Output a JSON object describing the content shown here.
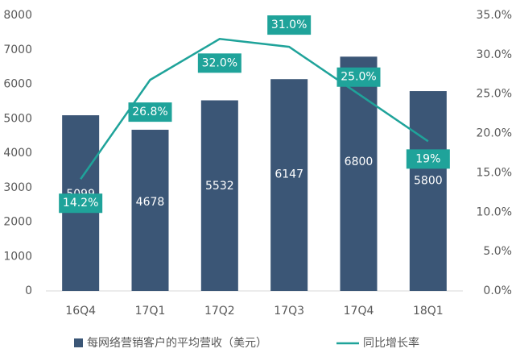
{
  "chart_data": {
    "type": "bar_line",
    "categories": [
      "16Q4",
      "17Q1",
      "17Q2",
      "17Q3",
      "17Q4",
      "18Q1"
    ],
    "series": [
      {
        "name": "每网络营销客户的平均营收（美元）",
        "type": "bar",
        "color": "#3b5676",
        "values": [
          5099,
          4678,
          5532,
          6147,
          6800,
          5800
        ]
      },
      {
        "name": "同比增长率",
        "type": "line",
        "axis": "y2",
        "color": "#1fa39a",
        "values": [
          14.2,
          26.8,
          32.0,
          31.0,
          25.0,
          19
        ],
        "value_labels": [
          "14.2%",
          "26.8%",
          "32.0%",
          "31.0%",
          "25.0%",
          "19%"
        ]
      }
    ],
    "ylim": [
      0,
      8000
    ],
    "yticks": [
      0,
      1000,
      2000,
      3000,
      4000,
      5000,
      6000,
      7000,
      8000
    ],
    "y2lim": [
      0,
      35
    ],
    "y2ticks": [
      {
        "value": 0,
        "label": "0.0%"
      },
      {
        "value": 5,
        "label": "5.0%"
      },
      {
        "value": 10,
        "label": "10.0%"
      },
      {
        "value": 15,
        "label": "15.0%"
      },
      {
        "value": 20,
        "label": "20.0%"
      },
      {
        "value": 25,
        "label": "25.0%"
      },
      {
        "value": 30,
        "label": "30.0%"
      },
      {
        "value": 35,
        "label": "35.0%"
      }
    ],
    "grid": false,
    "legend": "bottom"
  }
}
